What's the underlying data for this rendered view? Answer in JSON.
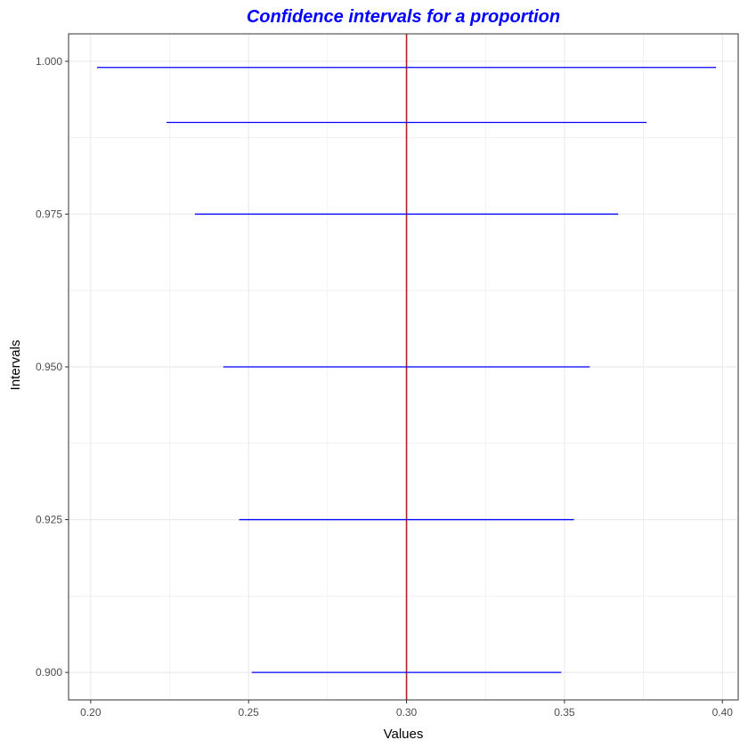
{
  "chart_data": {
    "type": "errorbar-horizontal",
    "title": "Confidence intervals for a proportion",
    "xlabel": "Values",
    "ylabel": "Intervals",
    "xlim": [
      0.193,
      0.405
    ],
    "ylim": [
      0.8955,
      1.0045
    ],
    "x_ticks": [
      0.2,
      0.25,
      0.3,
      0.35,
      0.4
    ],
    "x_tick_labels": [
      "0.20",
      "0.25",
      "0.30",
      "0.35",
      "0.40"
    ],
    "y_ticks": [
      0.9,
      0.925,
      0.95,
      0.975,
      1.0
    ],
    "y_tick_labels": [
      "0.900",
      "0.925",
      "0.950",
      "0.975",
      "1.000"
    ],
    "grid": true,
    "intervals": [
      {
        "level": 0.9,
        "lower": 0.251,
        "upper": 0.349
      },
      {
        "level": 0.925,
        "lower": 0.247,
        "upper": 0.353
      },
      {
        "level": 0.95,
        "lower": 0.242,
        "upper": 0.358
      },
      {
        "level": 0.975,
        "lower": 0.233,
        "upper": 0.367
      },
      {
        "level": 0.99,
        "lower": 0.224,
        "upper": 0.376
      },
      {
        "level": 0.999,
        "lower": 0.202,
        "upper": 0.398
      }
    ],
    "reference_line": {
      "x": 0.3
    },
    "colors": {
      "interval": "#0000ff",
      "reference": "#b22222",
      "title": "#0000ff",
      "grid": "#ebebeb",
      "panel_border": "#333333"
    }
  }
}
